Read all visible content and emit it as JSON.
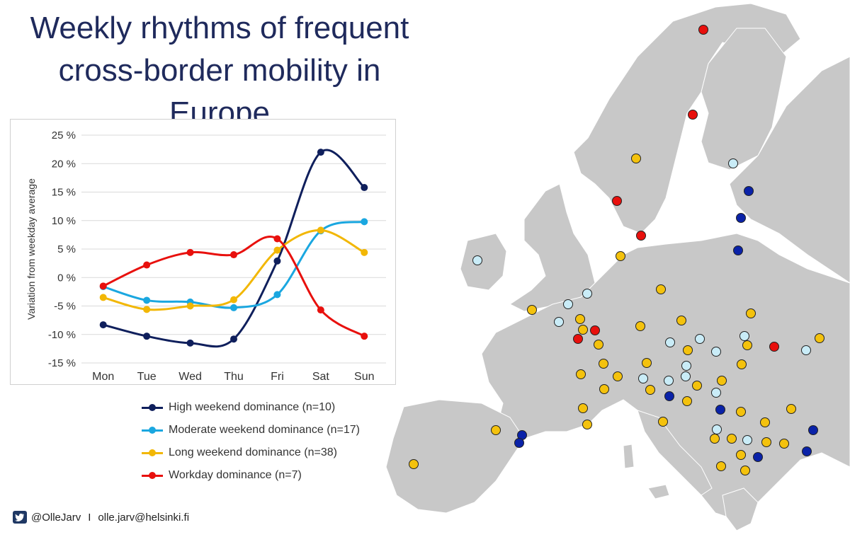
{
  "title": "Weekly rhythms of frequent cross-border mobility in Europe",
  "footer": {
    "twitter": "@OlleJarv",
    "separator": "I",
    "email": "olle.jarv@helsinki.fi"
  },
  "colors": {
    "title": "#1f2a5c",
    "map_land": "#c8c8c8",
    "map_sea": "#ffffff"
  },
  "chart_data": {
    "type": "line",
    "ylabel": "Variation from weekday average",
    "xlabel": "",
    "categories": [
      "Mon",
      "Tue",
      "Wed",
      "Thu",
      "Fri",
      "Sat",
      "Sun"
    ],
    "ylim": [
      -15,
      25
    ],
    "yticks": [
      "-15 %",
      "-10 %",
      "-5 %",
      "0 %",
      "5 %",
      "10 %",
      "15 %",
      "20 %",
      "25 %"
    ],
    "grid": true,
    "legend_placement": "bottom",
    "series": [
      {
        "name": "High weekend dominance (n=10)",
        "color": "#0f1f5c",
        "values": [
          -8.3,
          -10.3,
          -11.5,
          -10.8,
          2.9,
          22.0,
          15.8
        ]
      },
      {
        "name": "Moderate weekend dominance (n=17)",
        "color": "#1aa7e0",
        "values": [
          -1.6,
          -4.0,
          -4.3,
          -5.3,
          -3.0,
          8.2,
          9.8
        ]
      },
      {
        "name": "Long weekend dominance (n=38)",
        "color": "#f2b705",
        "values": [
          -3.5,
          -5.6,
          -5.0,
          -3.9,
          4.8,
          8.3,
          4.4
        ]
      },
      {
        "name": "Workday dominance (n=7)",
        "color": "#e8100d",
        "values": [
          -1.5,
          2.2,
          4.4,
          4.0,
          6.8,
          -5.7,
          -10.3
        ]
      }
    ]
  },
  "map_points": {
    "high": {
      "color": "#0a22a8"
    },
    "moderate": {
      "color": "#c9ecf7"
    },
    "long": {
      "color": "#f4c20d"
    },
    "workday": {
      "color": "#e8100d"
    }
  }
}
